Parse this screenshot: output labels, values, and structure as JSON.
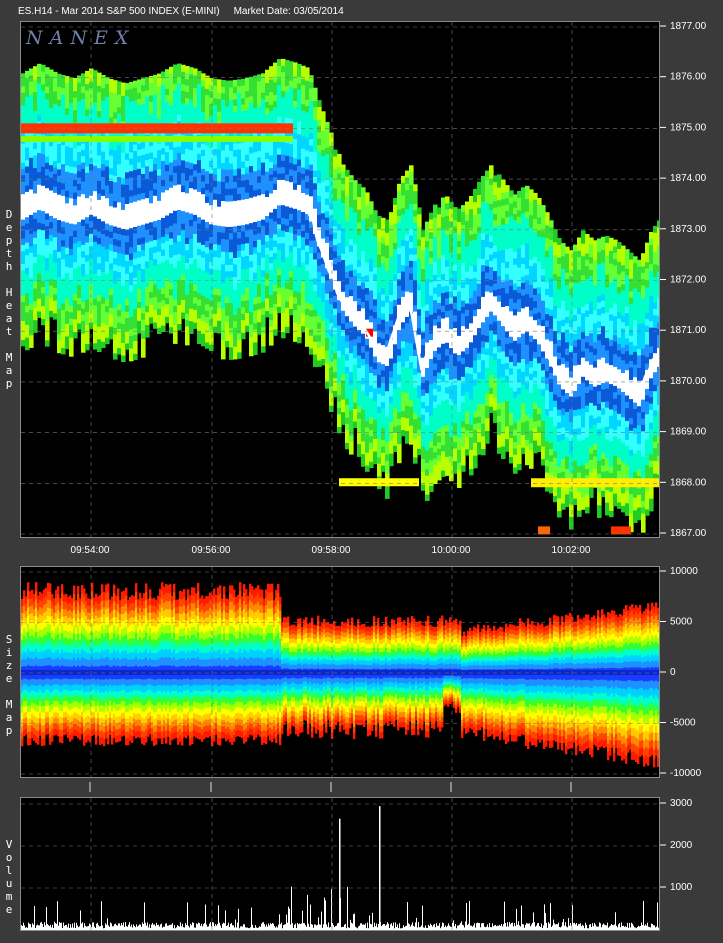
{
  "header": {
    "symbol": "ES.H14 - Mar 2014 S&P 500 INDEX (E-MINI)",
    "market_date": "Market Date: 03/05/2014"
  },
  "logo": "NANEX",
  "labels": {
    "depth": "Depth Heat Map",
    "size": "Size Map",
    "volume": "Volume"
  },
  "chart_data": [
    {
      "type": "heatmap",
      "title": "",
      "ylabel": "Depth Heat Map",
      "ylim": [
        1867.0,
        1877.0
      ],
      "y_ticks": [
        "1877.00",
        "1876.00",
        "1875.00",
        "1874.00",
        "1873.00",
        "1872.00",
        "1871.00",
        "1870.00",
        "1869.00",
        "1868.00",
        "1867.00"
      ],
      "x_ticks": [
        "09:54:00",
        "09:56:00",
        "09:58:00",
        "10:00:00",
        "10:02:00"
      ],
      "x_range_minutes": [
        9.878,
        10.052
      ],
      "grid": true,
      "price_path": [
        [
          0,
          1873.4
        ],
        [
          3,
          1873.6
        ],
        [
          6,
          1873.4
        ],
        [
          9,
          1873.3
        ],
        [
          12,
          1873.5
        ],
        [
          15,
          1873.3
        ],
        [
          18,
          1873.2
        ],
        [
          21,
          1873.3
        ],
        [
          24,
          1873.4
        ],
        [
          27,
          1873.6
        ],
        [
          30,
          1873.5
        ],
        [
          33,
          1873.3
        ],
        [
          36,
          1873.25
        ],
        [
          39,
          1873.3
        ],
        [
          42,
          1873.4
        ],
        [
          45,
          1873.7
        ],
        [
          48,
          1873.6
        ],
        [
          50,
          1873.5
        ],
        [
          52,
          1872.8
        ],
        [
          54,
          1872.2
        ],
        [
          56,
          1871.6
        ],
        [
          58,
          1871.3
        ],
        [
          60,
          1871.1
        ],
        [
          62,
          1870.6
        ],
        [
          64,
          1870.5
        ],
        [
          66,
          1871.3
        ],
        [
          68,
          1871.6
        ],
        [
          70,
          1870.3
        ],
        [
          72,
          1870.8
        ],
        [
          74,
          1871.0
        ],
        [
          76,
          1870.7
        ],
        [
          78,
          1870.9
        ],
        [
          80,
          1871.3
        ],
        [
          82,
          1871.6
        ],
        [
          84,
          1871.3
        ],
        [
          86,
          1871.0
        ],
        [
          88,
          1871.2
        ],
        [
          90,
          1871.0
        ],
        [
          92,
          1870.6
        ],
        [
          94,
          1870.1
        ],
        [
          96,
          1869.9
        ],
        [
          98,
          1870.3
        ],
        [
          100,
          1870.1
        ],
        [
          102,
          1870.2
        ],
        [
          104,
          1870.1
        ],
        [
          106,
          1869.9
        ],
        [
          108,
          1869.7
        ],
        [
          110,
          1870.3
        ],
        [
          112,
          1870.6
        ]
      ],
      "color_scale": [
        "#000000",
        "#00b000",
        "#66ff00",
        "#ffff00",
        "#ff6600",
        "#ff0000",
        "#00ffff",
        "#0066ff",
        "#ffffff"
      ]
    },
    {
      "type": "heatmap",
      "ylabel": "Size Map",
      "ylim": [
        -10000,
        10000
      ],
      "y_ticks": [
        "10000",
        "5000",
        "0",
        "-5000",
        "-10000"
      ],
      "grid": true
    },
    {
      "type": "bar",
      "ylabel": "Volume",
      "ylim": [
        0,
        3000
      ],
      "y_ticks": [
        "3000",
        "2000",
        "1000"
      ],
      "grid": true,
      "notable_spikes": [
        {
          "x": "09:58:00",
          "value": 2650
        },
        {
          "x": "09:58:40",
          "value": 2950
        }
      ]
    }
  ]
}
